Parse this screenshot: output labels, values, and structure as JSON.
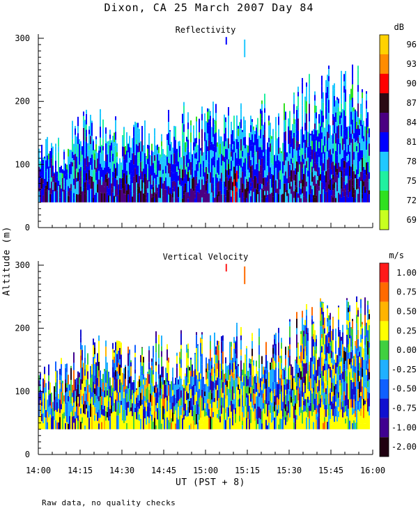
{
  "title": "Dixon, CA 25 March 2007  Day  84",
  "ylabel": "Altitude (m)",
  "xlabel": "UT  (PST + 8)",
  "footer": "Raw data, no quality checks",
  "chart_data": [
    {
      "type": "heatmap",
      "title": "Reflectivity",
      "ylim": [
        0,
        300
      ],
      "yticks": [
        0,
        100,
        200,
        300
      ],
      "xlim_hours": [
        14.0,
        16.0
      ],
      "xtick_labels": [
        "14:00",
        "14:15",
        "14:30",
        "14:45",
        "15:00",
        "15:15",
        "15:30",
        "15:45",
        "16:00"
      ],
      "colorbar": {
        "unit": "dB",
        "tick_labels": [
          "96",
          "93",
          "90",
          "87",
          "84",
          "81",
          "78",
          "75",
          "72",
          "69"
        ],
        "colors": [
          "#ffd200",
          "#ff8c00",
          "#ff0000",
          "#2a0a14",
          "#4b0082",
          "#0000ff",
          "#20c8ff",
          "#20f0a0",
          "#30e020",
          "#c8ff20"
        ]
      },
      "data_floor_m": 40,
      "echo_top_m": [
        140,
        160,
        200,
        180,
        200,
        200,
        210,
        220,
        200,
        240,
        260,
        260,
        240
      ],
      "echo_top_times": [
        "14:00",
        "14:10",
        "14:15",
        "14:30",
        "14:45",
        "15:00",
        "15:10",
        "15:20",
        "15:25",
        "15:35",
        "15:45",
        "15:55",
        "16:00"
      ]
    },
    {
      "type": "heatmap",
      "title": "Vertical Velocity",
      "ylim": [
        0,
        300
      ],
      "yticks": [
        0,
        100,
        200,
        300
      ],
      "xlim_hours": [
        14.0,
        16.0
      ],
      "xtick_labels": [
        "14:00",
        "14:15",
        "14:30",
        "14:45",
        "15:00",
        "15:15",
        "15:30",
        "15:45",
        "16:00"
      ],
      "colorbar": {
        "unit": "m/s",
        "tick_labels": [
          "1.00",
          "0.75",
          "0.50",
          "0.25",
          "0.00",
          "-0.25",
          "-0.50",
          "-0.75",
          "-1.00",
          "-2.00"
        ],
        "colors": [
          "#ff1a1a",
          "#ff6a00",
          "#ffb400",
          "#ffff00",
          "#40d040",
          "#20b0ff",
          "#1060ff",
          "#1010d0",
          "#400090",
          "#200010"
        ]
      },
      "data_floor_m": 40,
      "echo_top_m": [
        140,
        160,
        200,
        180,
        200,
        200,
        210,
        220,
        200,
        240,
        260,
        260,
        240
      ],
      "echo_top_times": [
        "14:00",
        "14:10",
        "14:15",
        "14:30",
        "14:45",
        "15:00",
        "15:10",
        "15:20",
        "15:25",
        "15:35",
        "15:45",
        "15:55",
        "16:00"
      ]
    }
  ]
}
